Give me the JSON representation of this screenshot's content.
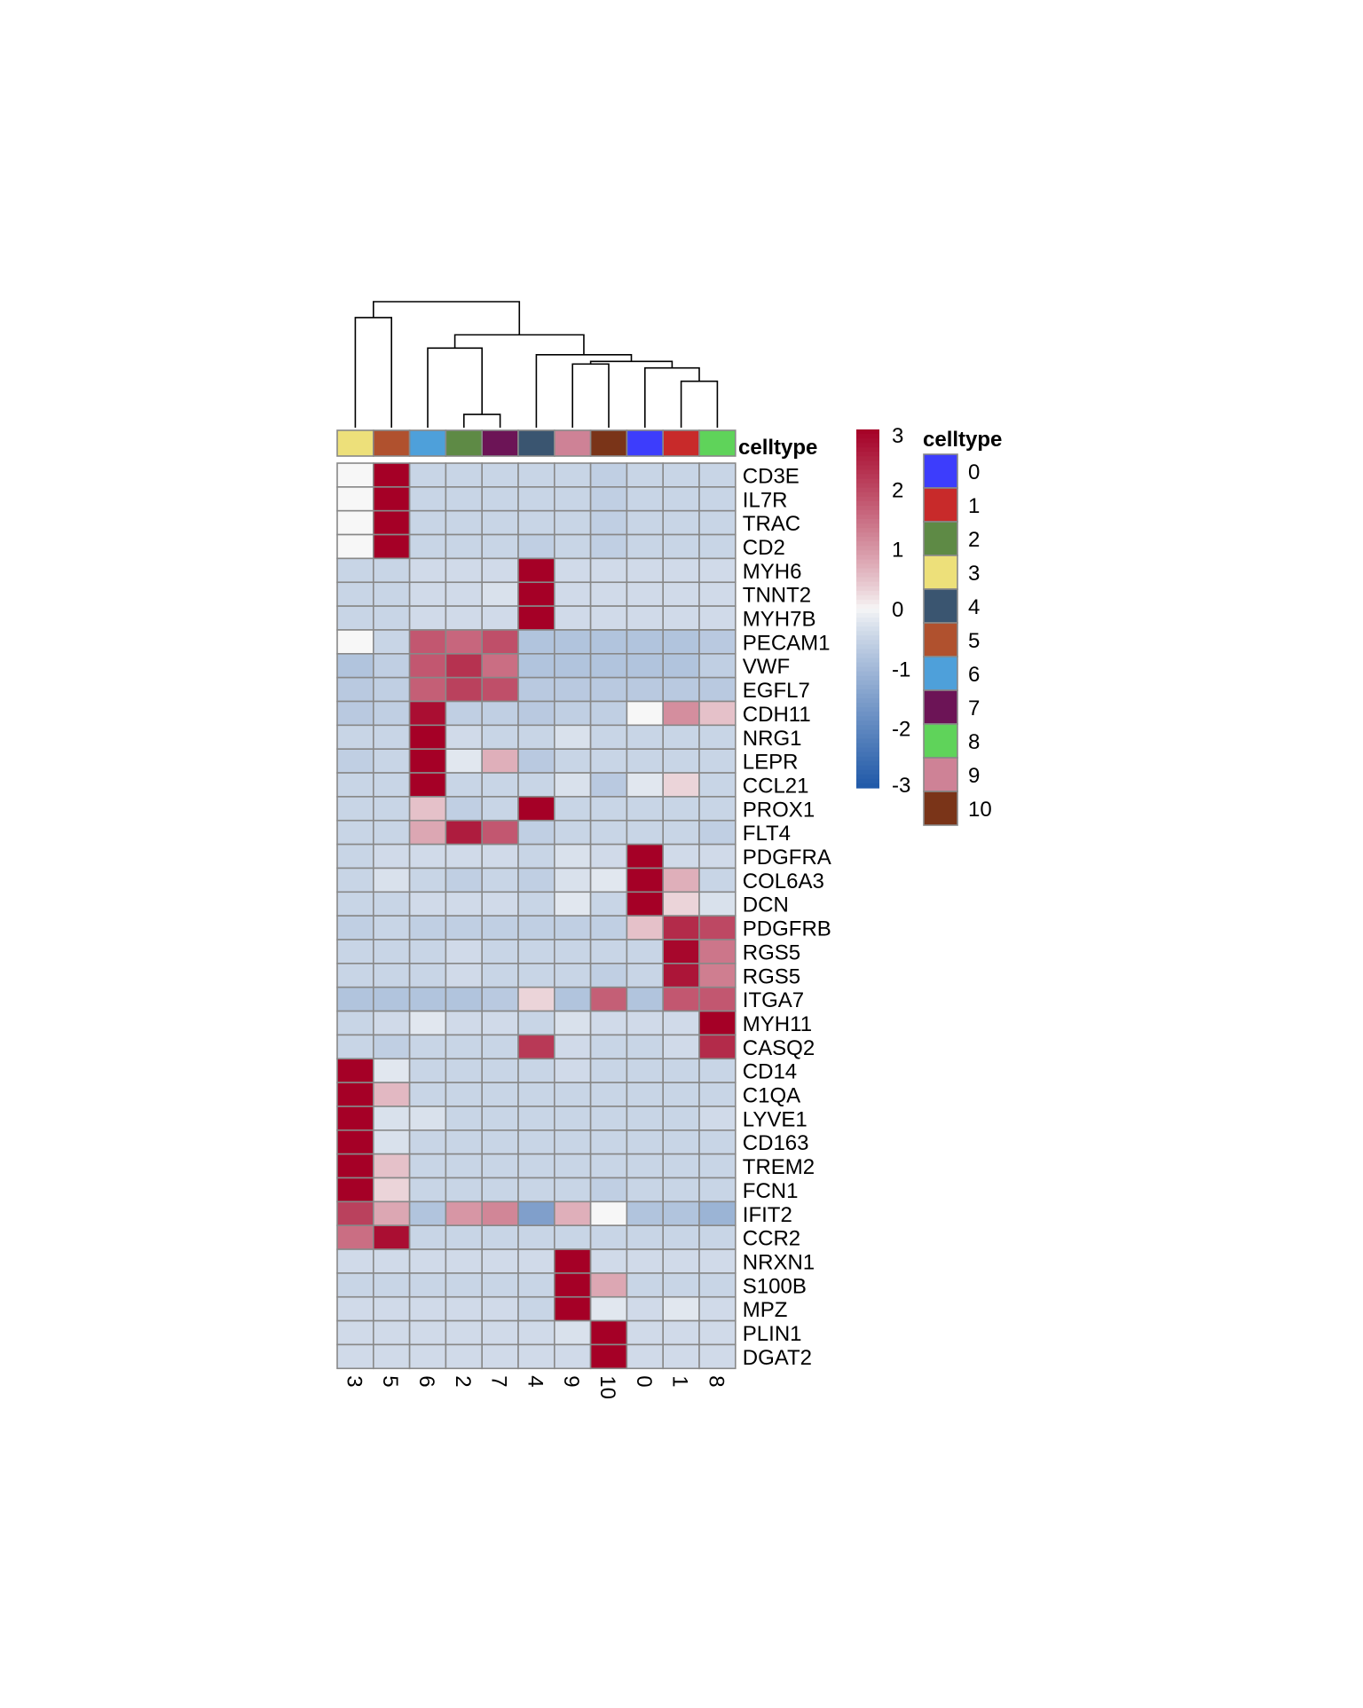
{
  "chart_data": {
    "type": "heatmap",
    "columns": [
      "3",
      "5",
      "6",
      "2",
      "7",
      "4",
      "9",
      "10",
      "0",
      "1",
      "8"
    ],
    "rows": [
      "CD3E",
      "IL7R",
      "TRAC",
      "CD2",
      "MYH6",
      "TNNT2",
      "MYH7B",
      "PECAM1",
      "VWF",
      "EGFL7",
      "CDH11",
      "NRG1",
      "LEPR",
      "CCL21",
      "PROX1",
      "FLT4",
      "PDGFRA",
      "COL6A3",
      "DCN",
      "PDGFRB",
      "RGS5",
      "RGS5",
      "ITGA7",
      "MYH11",
      "CASQ2",
      "CD14",
      "C1QA",
      "LYVE1",
      "CD163",
      "TREM2",
      "FCN1",
      "IFIT2",
      "CCR2",
      "NRXN1",
      "S100B",
      "MPZ",
      "PLIN1",
      "DGAT2"
    ],
    "values": [
      [
        0.0,
        3.0,
        -0.5,
        -0.5,
        -0.5,
        -0.5,
        -0.5,
        -0.6,
        -0.5,
        -0.5,
        -0.5
      ],
      [
        0.0,
        3.0,
        -0.5,
        -0.5,
        -0.5,
        -0.5,
        -0.5,
        -0.6,
        -0.5,
        -0.5,
        -0.5
      ],
      [
        0.0,
        3.0,
        -0.5,
        -0.5,
        -0.5,
        -0.5,
        -0.5,
        -0.6,
        -0.5,
        -0.5,
        -0.5
      ],
      [
        0.0,
        3.0,
        -0.5,
        -0.5,
        -0.5,
        -0.6,
        -0.5,
        -0.6,
        -0.5,
        -0.5,
        -0.5
      ],
      [
        -0.5,
        -0.5,
        -0.4,
        -0.4,
        -0.4,
        3.0,
        -0.4,
        -0.4,
        -0.4,
        -0.4,
        -0.4
      ],
      [
        -0.5,
        -0.5,
        -0.4,
        -0.4,
        -0.3,
        3.0,
        -0.4,
        -0.4,
        -0.4,
        -0.4,
        -0.4
      ],
      [
        -0.5,
        -0.5,
        -0.4,
        -0.4,
        -0.4,
        3.0,
        -0.4,
        -0.4,
        -0.4,
        -0.4,
        -0.4
      ],
      [
        0.0,
        -0.5,
        1.8,
        1.6,
        1.9,
        -0.8,
        -0.8,
        -0.8,
        -0.8,
        -0.8,
        -0.7
      ],
      [
        -0.8,
        -0.6,
        1.8,
        2.3,
        1.5,
        -0.8,
        -0.8,
        -0.8,
        -0.8,
        -0.8,
        -0.6
      ],
      [
        -0.7,
        -0.6,
        1.7,
        2.1,
        1.9,
        -0.7,
        -0.7,
        -0.7,
        -0.7,
        -0.7,
        -0.7
      ],
      [
        -0.7,
        -0.6,
        2.8,
        -0.6,
        -0.6,
        -0.7,
        -0.6,
        -0.6,
        0.0,
        1.1,
        0.5
      ],
      [
        -0.5,
        -0.5,
        3.0,
        -0.4,
        -0.5,
        -0.5,
        -0.3,
        -0.5,
        -0.5,
        -0.5,
        -0.5
      ],
      [
        -0.6,
        -0.5,
        3.0,
        -0.2,
        0.7,
        -0.7,
        -0.5,
        -0.5,
        -0.5,
        -0.5,
        -0.5
      ],
      [
        -0.5,
        -0.5,
        3.0,
        -0.5,
        -0.5,
        -0.5,
        -0.3,
        -0.7,
        -0.2,
        0.3,
        -0.5
      ],
      [
        -0.5,
        -0.5,
        0.5,
        -0.6,
        -0.5,
        3.0,
        -0.5,
        -0.5,
        -0.5,
        -0.5,
        -0.5
      ],
      [
        -0.5,
        -0.5,
        0.8,
        2.6,
        1.8,
        -0.6,
        -0.5,
        -0.5,
        -0.5,
        -0.5,
        -0.6
      ],
      [
        -0.5,
        -0.4,
        -0.4,
        -0.4,
        -0.4,
        -0.5,
        -0.3,
        -0.4,
        3.0,
        -0.4,
        -0.4
      ],
      [
        -0.5,
        -0.3,
        -0.5,
        -0.6,
        -0.5,
        -0.6,
        -0.3,
        -0.2,
        3.0,
        0.7,
        -0.5
      ],
      [
        -0.5,
        -0.5,
        -0.4,
        -0.4,
        -0.4,
        -0.5,
        -0.2,
        -0.5,
        3.0,
        0.3,
        -0.3
      ],
      [
        -0.6,
        -0.5,
        -0.6,
        -0.6,
        -0.6,
        -0.6,
        -0.6,
        -0.6,
        0.5,
        2.4,
        2.0
      ],
      [
        -0.5,
        -0.5,
        -0.5,
        -0.4,
        -0.5,
        -0.5,
        -0.5,
        -0.5,
        -0.5,
        2.9,
        1.4
      ],
      [
        -0.5,
        -0.5,
        -0.5,
        -0.4,
        -0.5,
        -0.5,
        -0.5,
        -0.6,
        -0.5,
        2.7,
        1.3
      ],
      [
        -0.8,
        -0.8,
        -0.8,
        -0.8,
        -0.7,
        0.3,
        -0.8,
        1.7,
        -0.8,
        1.8,
        1.8
      ],
      [
        -0.5,
        -0.4,
        -0.2,
        -0.4,
        -0.4,
        -0.5,
        -0.3,
        -0.4,
        -0.4,
        -0.4,
        3.0
      ],
      [
        -0.5,
        -0.6,
        -0.5,
        -0.5,
        -0.5,
        2.2,
        -0.4,
        -0.5,
        -0.5,
        -0.4,
        2.4
      ],
      [
        3.0,
        -0.2,
        -0.5,
        -0.5,
        -0.5,
        -0.5,
        -0.4,
        -0.5,
        -0.5,
        -0.5,
        -0.5
      ],
      [
        3.0,
        0.6,
        -0.5,
        -0.5,
        -0.5,
        -0.5,
        -0.5,
        -0.5,
        -0.5,
        -0.5,
        -0.5
      ],
      [
        3.0,
        -0.3,
        -0.3,
        -0.5,
        -0.5,
        -0.5,
        -0.5,
        -0.5,
        -0.5,
        -0.5,
        -0.4
      ],
      [
        3.0,
        -0.3,
        -0.5,
        -0.5,
        -0.5,
        -0.5,
        -0.5,
        -0.5,
        -0.5,
        -0.5,
        -0.5
      ],
      [
        3.0,
        0.5,
        -0.5,
        -0.5,
        -0.5,
        -0.5,
        -0.5,
        -0.5,
        -0.5,
        -0.5,
        -0.5
      ],
      [
        3.0,
        0.3,
        -0.5,
        -0.5,
        -0.5,
        -0.5,
        -0.5,
        -0.6,
        -0.5,
        -0.5,
        -0.5
      ],
      [
        2.1,
        0.8,
        -0.8,
        1.0,
        1.2,
        -1.5,
        0.7,
        0.0,
        -0.8,
        -0.8,
        -1.1
      ],
      [
        1.5,
        2.8,
        -0.5,
        -0.5,
        -0.5,
        -0.5,
        -0.5,
        -0.5,
        -0.5,
        -0.5,
        -0.5
      ],
      [
        -0.4,
        -0.4,
        -0.4,
        -0.4,
        -0.4,
        -0.4,
        3.0,
        -0.4,
        -0.4,
        -0.4,
        -0.4
      ],
      [
        -0.5,
        -0.5,
        -0.5,
        -0.5,
        -0.5,
        -0.5,
        3.0,
        0.8,
        -0.5,
        -0.5,
        -0.5
      ],
      [
        -0.4,
        -0.4,
        -0.4,
        -0.4,
        -0.4,
        -0.5,
        3.0,
        -0.2,
        -0.4,
        -0.2,
        -0.4
      ],
      [
        -0.4,
        -0.4,
        -0.4,
        -0.4,
        -0.4,
        -0.4,
        -0.3,
        3.0,
        -0.4,
        -0.4,
        -0.4
      ],
      [
        -0.4,
        -0.4,
        -0.4,
        -0.4,
        -0.4,
        -0.4,
        -0.4,
        3.0,
        -0.4,
        -0.4,
        -0.4
      ]
    ],
    "annotation": {
      "title": "celltype",
      "column_celltypes": [
        "3",
        "5",
        "6",
        "2",
        "7",
        "4",
        "9",
        "10",
        "0",
        "1",
        "8"
      ]
    },
    "colorbar": {
      "range": [
        -3,
        3
      ],
      "ticks": [
        "3",
        "2",
        "1",
        "0",
        "-1",
        "-2",
        "-3"
      ],
      "low_color": "#2059A8",
      "mid_color": "#F7F7F7",
      "high_color": "#A50026"
    },
    "legend": {
      "title": "celltype",
      "items": [
        {
          "label": "0",
          "color": "#3D3DFC"
        },
        {
          "label": "1",
          "color": "#C82A2A"
        },
        {
          "label": "2",
          "color": "#5E8A45"
        },
        {
          "label": "3",
          "color": "#EDE07A"
        },
        {
          "label": "4",
          "color": "#3A5570"
        },
        {
          "label": "5",
          "color": "#B0512E"
        },
        {
          "label": "6",
          "color": "#4EA0DA"
        },
        {
          "label": "7",
          "color": "#6C1456"
        },
        {
          "label": "8",
          "color": "#5FD35A"
        },
        {
          "label": "9",
          "color": "#CE8296"
        },
        {
          "label": "10",
          "color": "#7A3418"
        }
      ]
    },
    "dendrogram": {
      "merges": [
        [
          -4,
          -5
        ],
        [
          -10,
          -11
        ],
        [
          -9,
          2
        ],
        [
          -7,
          -8
        ],
        [
          4,
          3
        ],
        [
          -6,
          5
        ],
        [
          -3,
          1
        ],
        [
          7,
          6
        ],
        [
          -1,
          -2
        ],
        [
          9,
          8
        ]
      ],
      "heights": [
        0.1,
        0.35,
        0.45,
        0.48,
        0.5,
        0.55,
        0.6,
        0.7,
        0.83,
        0.95
      ]
    }
  }
}
